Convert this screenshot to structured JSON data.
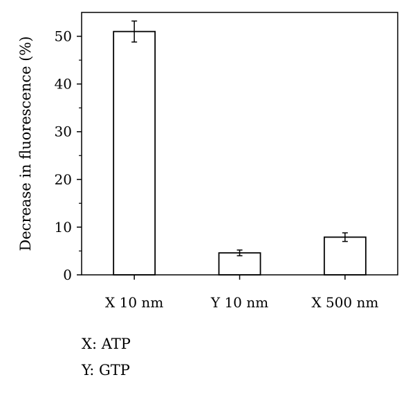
{
  "chart_data": {
    "type": "bar",
    "title": "",
    "xlabel": "",
    "ylabel": "Decrease in fluorescence (%)",
    "categories": [
      "X 10 nm",
      "Y 10 nm",
      "X 500 nm"
    ],
    "values": [
      51,
      4.6,
      7.9
    ],
    "errors": [
      2.2,
      0.6,
      0.9
    ],
    "ylim": [
      0,
      55
    ],
    "yticks": [
      0,
      10,
      20,
      30,
      40,
      50
    ],
    "grid": false,
    "bar_fill": "#ffffff",
    "bar_stroke": "#000000"
  },
  "legend": [
    {
      "text": "X: ATP"
    },
    {
      "text": "Y: GTP"
    }
  ]
}
